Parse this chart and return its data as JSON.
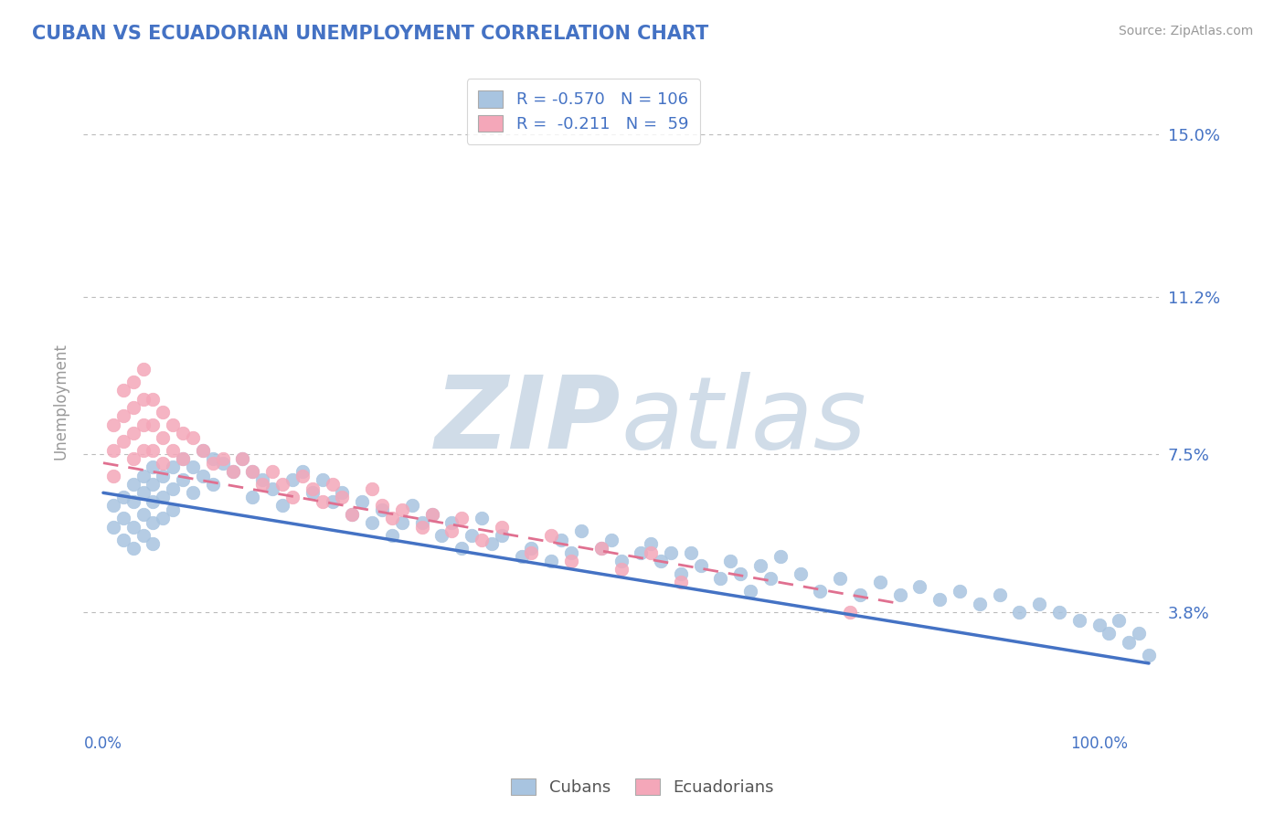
{
  "title": "CUBAN VS ECUADORIAN UNEMPLOYMENT CORRELATION CHART",
  "source_text": "Source: ZipAtlas.com",
  "ylabel": "Unemployment",
  "yticks": [
    0.038,
    0.075,
    0.112,
    0.15
  ],
  "ytick_labels": [
    "3.8%",
    "7.5%",
    "11.2%",
    "15.0%"
  ],
  "xlim": [
    -0.02,
    1.06
  ],
  "ylim": [
    0.01,
    0.165
  ],
  "blue_R": -0.57,
  "blue_N": 106,
  "pink_R": -0.211,
  "pink_N": 59,
  "blue_color": "#a8c4e0",
  "pink_color": "#f4a7b9",
  "blue_line_color": "#4472c4",
  "pink_line_color": "#e07090",
  "text_color": "#4472c4",
  "grid_color": "#bbbbbb",
  "watermark_color": "#d0dce8",
  "legend_label_cubans": "Cubans",
  "legend_label_ecuadorians": "Ecuadorians",
  "blue_scatter_x": [
    0.01,
    0.01,
    0.02,
    0.02,
    0.02,
    0.03,
    0.03,
    0.03,
    0.03,
    0.04,
    0.04,
    0.04,
    0.04,
    0.05,
    0.05,
    0.05,
    0.05,
    0.05,
    0.06,
    0.06,
    0.06,
    0.07,
    0.07,
    0.07,
    0.08,
    0.08,
    0.09,
    0.09,
    0.1,
    0.1,
    0.11,
    0.11,
    0.12,
    0.13,
    0.14,
    0.15,
    0.15,
    0.16,
    0.17,
    0.18,
    0.19,
    0.2,
    0.21,
    0.22,
    0.23,
    0.24,
    0.25,
    0.26,
    0.27,
    0.28,
    0.29,
    0.3,
    0.31,
    0.32,
    0.33,
    0.34,
    0.35,
    0.36,
    0.37,
    0.38,
    0.39,
    0.4,
    0.42,
    0.43,
    0.45,
    0.46,
    0.47,
    0.48,
    0.5,
    0.51,
    0.52,
    0.54,
    0.55,
    0.56,
    0.57,
    0.58,
    0.59,
    0.6,
    0.62,
    0.63,
    0.64,
    0.65,
    0.66,
    0.67,
    0.68,
    0.7,
    0.72,
    0.74,
    0.76,
    0.78,
    0.8,
    0.82,
    0.84,
    0.86,
    0.88,
    0.9,
    0.92,
    0.94,
    0.96,
    0.98,
    1.0,
    1.01,
    1.02,
    1.03,
    1.04,
    1.05
  ],
  "blue_scatter_y": [
    0.063,
    0.058,
    0.065,
    0.06,
    0.055,
    0.068,
    0.064,
    0.058,
    0.053,
    0.07,
    0.066,
    0.061,
    0.056,
    0.072,
    0.068,
    0.064,
    0.059,
    0.054,
    0.07,
    0.065,
    0.06,
    0.072,
    0.067,
    0.062,
    0.074,
    0.069,
    0.072,
    0.066,
    0.076,
    0.07,
    0.074,
    0.068,
    0.073,
    0.071,
    0.074,
    0.071,
    0.065,
    0.069,
    0.067,
    0.063,
    0.069,
    0.071,
    0.066,
    0.069,
    0.064,
    0.066,
    0.061,
    0.064,
    0.059,
    0.062,
    0.056,
    0.059,
    0.063,
    0.059,
    0.061,
    0.056,
    0.059,
    0.053,
    0.056,
    0.06,
    0.054,
    0.056,
    0.051,
    0.053,
    0.05,
    0.055,
    0.052,
    0.057,
    0.053,
    0.055,
    0.05,
    0.052,
    0.054,
    0.05,
    0.052,
    0.047,
    0.052,
    0.049,
    0.046,
    0.05,
    0.047,
    0.043,
    0.049,
    0.046,
    0.051,
    0.047,
    0.043,
    0.046,
    0.042,
    0.045,
    0.042,
    0.044,
    0.041,
    0.043,
    0.04,
    0.042,
    0.038,
    0.04,
    0.038,
    0.036,
    0.035,
    0.033,
    0.036,
    0.031,
    0.033,
    0.028
  ],
  "pink_scatter_x": [
    0.01,
    0.01,
    0.01,
    0.02,
    0.02,
    0.02,
    0.03,
    0.03,
    0.03,
    0.03,
    0.04,
    0.04,
    0.04,
    0.04,
    0.05,
    0.05,
    0.05,
    0.06,
    0.06,
    0.06,
    0.07,
    0.07,
    0.08,
    0.08,
    0.09,
    0.1,
    0.11,
    0.12,
    0.13,
    0.14,
    0.15,
    0.16,
    0.17,
    0.18,
    0.19,
    0.2,
    0.21,
    0.22,
    0.23,
    0.24,
    0.25,
    0.27,
    0.28,
    0.29,
    0.3,
    0.32,
    0.33,
    0.35,
    0.36,
    0.38,
    0.4,
    0.43,
    0.45,
    0.47,
    0.5,
    0.52,
    0.55,
    0.58,
    0.75
  ],
  "pink_scatter_y": [
    0.082,
    0.076,
    0.07,
    0.09,
    0.084,
    0.078,
    0.092,
    0.086,
    0.08,
    0.074,
    0.095,
    0.088,
    0.082,
    0.076,
    0.088,
    0.082,
    0.076,
    0.085,
    0.079,
    0.073,
    0.082,
    0.076,
    0.08,
    0.074,
    0.079,
    0.076,
    0.073,
    0.074,
    0.071,
    0.074,
    0.071,
    0.068,
    0.071,
    0.068,
    0.065,
    0.07,
    0.067,
    0.064,
    0.068,
    0.065,
    0.061,
    0.067,
    0.063,
    0.06,
    0.062,
    0.058,
    0.061,
    0.057,
    0.06,
    0.055,
    0.058,
    0.052,
    0.056,
    0.05,
    0.053,
    0.048,
    0.052,
    0.045,
    0.038
  ],
  "blue_line_x0": 0.0,
  "blue_line_x1": 1.05,
  "blue_line_y0": 0.066,
  "blue_line_y1": 0.026,
  "pink_line_x0": 0.0,
  "pink_line_x1": 0.8,
  "pink_line_y0": 0.073,
  "pink_line_y1": 0.04
}
